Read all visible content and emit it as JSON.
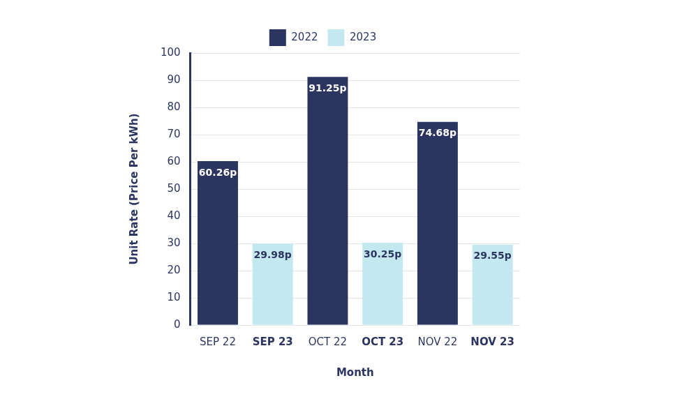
{
  "chart_data": {
    "type": "bar",
    "x_label": "Month",
    "y_label": "Unit Rate (Price Per kWh)",
    "categories": [
      "SEP 22",
      "SEP 23",
      "OCT 22",
      "OCT 23",
      "NOV 22",
      "NOV 23"
    ],
    "series": [
      {
        "name": "2022",
        "color": "#2b3560",
        "values": [
          60.26,
          null,
          91.25,
          null,
          74.68,
          null
        ],
        "value_labels": [
          "60.26p",
          null,
          "91.25p",
          null,
          "74.68p",
          null
        ]
      },
      {
        "name": "2023",
        "color": "#c4e8ef",
        "values": [
          null,
          29.98,
          null,
          30.25,
          null,
          29.55
        ],
        "value_labels": [
          null,
          "29.98p",
          null,
          "30.25p",
          null,
          "29.55p"
        ]
      }
    ],
    "ylim": [
      0,
      100
    ],
    "yticks": [
      0,
      10,
      20,
      30,
      40,
      50,
      60,
      70,
      80,
      90,
      100
    ],
    "grid": true,
    "legend": "top",
    "data_labels": true
  }
}
